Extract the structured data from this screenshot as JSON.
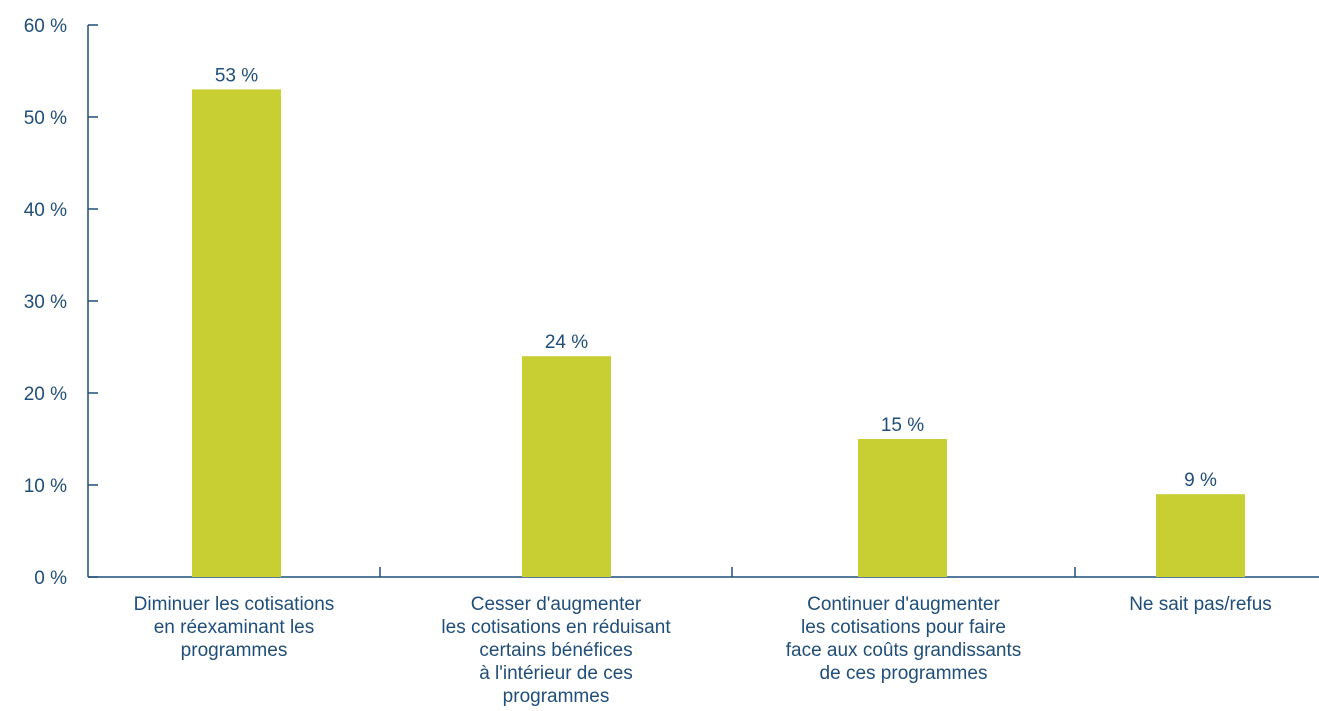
{
  "chart_data": {
    "type": "bar",
    "categories": [
      [
        "Diminuer les cotisations",
        "en réexaminant les",
        "programmes"
      ],
      [
        "Cesser d'augmenter",
        "les cotisations en réduisant",
        "certains bénéfices",
        "à l'intérieur de ces",
        "programmes"
      ],
      [
        "Continuer d'augmenter",
        "les cotisations pour faire",
        "face aux coûts grandissants",
        "de ces programmes"
      ],
      [
        "Ne sait pas/refus"
      ]
    ],
    "values": [
      53,
      24,
      15,
      9
    ],
    "value_labels": [
      "53 %",
      "24 %",
      "15 %",
      "9 %"
    ],
    "yticks": [
      0,
      10,
      20,
      30,
      40,
      50,
      60
    ],
    "ytick_labels": [
      "0 %",
      "10 %",
      "20 %",
      "30 %",
      "40 %",
      "50 %",
      "60 %"
    ],
    "ylim": [
      0,
      60
    ],
    "grid": false,
    "legend": "none",
    "colors": {
      "bar": "#c8cf32",
      "axis": "#1f4e79",
      "text": "#1f4e79"
    }
  }
}
